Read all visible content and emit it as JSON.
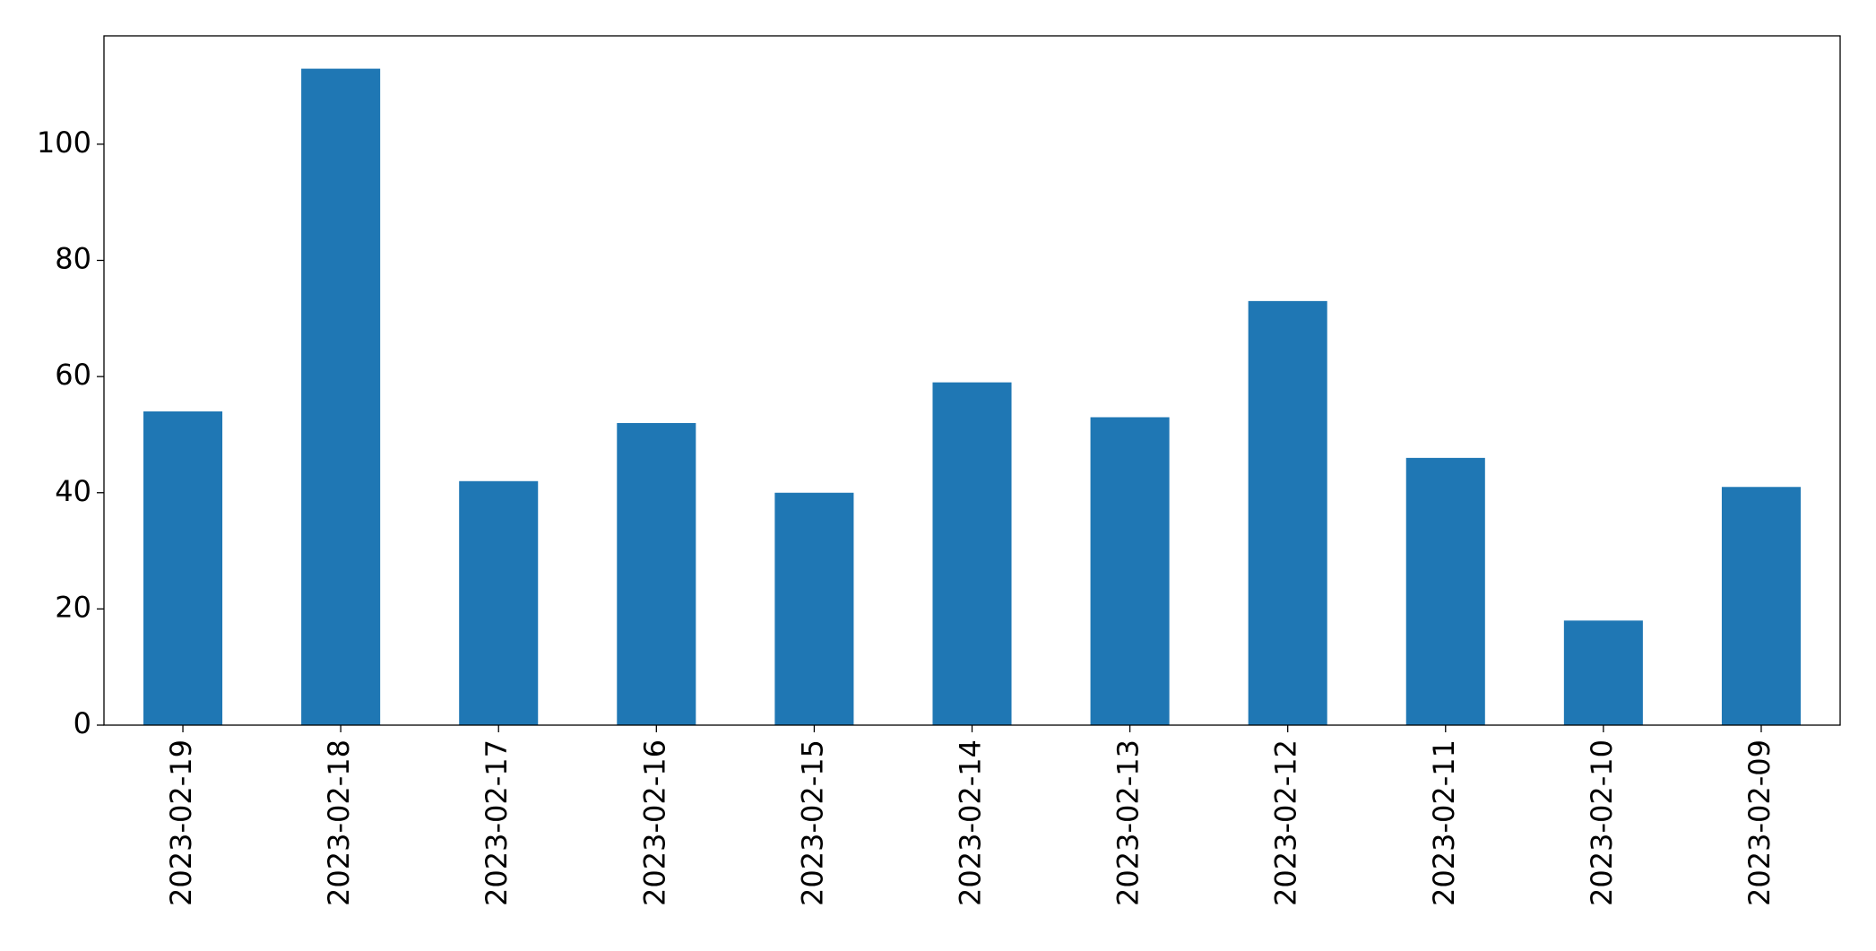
{
  "chart_data": {
    "type": "bar",
    "categories": [
      "2023-02-19",
      "2023-02-18",
      "2023-02-17",
      "2023-02-16",
      "2023-02-15",
      "2023-02-14",
      "2023-02-13",
      "2023-02-12",
      "2023-02-11",
      "2023-02-10",
      "2023-02-09"
    ],
    "values": [
      54,
      113,
      42,
      52,
      40,
      59,
      53,
      73,
      46,
      18,
      41
    ],
    "color": "#1f77b4",
    "ylim": [
      0,
      118.65
    ],
    "yticks": [
      0,
      20,
      40,
      60,
      80,
      100
    ],
    "grid": false
  }
}
